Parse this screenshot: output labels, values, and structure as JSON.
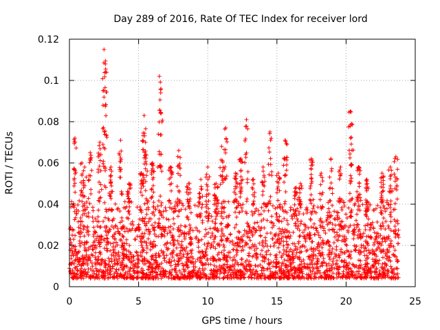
{
  "chart_data": {
    "type": "scatter",
    "title": "Day 289 of 2016, Rate Of TEC Index for receiver lord",
    "xlabel": "GPS time / hours",
    "ylabel": "ROTI / TECUs",
    "xlim": [
      0,
      25
    ],
    "ylim": [
      0,
      0.12
    ],
    "x_ticks": [
      0,
      5,
      10,
      15,
      20,
      25
    ],
    "x_tick_labels": [
      "0",
      "5",
      "10",
      "15",
      "20",
      "25"
    ],
    "y_ticks": [
      0,
      0.02,
      0.04,
      0.06,
      0.08,
      0.1,
      0.12
    ],
    "y_tick_labels": [
      "0",
      "0.02",
      "0.04",
      "0.06",
      "0.08",
      "0.1",
      "0.12"
    ],
    "grid": true,
    "marker": "+",
    "series_color": "#ff0000",
    "x_coverage": [
      0,
      23.8
    ],
    "baseline_range": [
      0.004,
      0.03
    ],
    "spikes": [
      {
        "x": 0.4,
        "y": 0.072
      },
      {
        "x": 0.9,
        "y": 0.06
      },
      {
        "x": 1.1,
        "y": 0.058
      },
      {
        "x": 1.5,
        "y": 0.065
      },
      {
        "x": 2.2,
        "y": 0.07
      },
      {
        "x": 2.5,
        "y": 0.115
      },
      {
        "x": 2.6,
        "y": 0.108
      },
      {
        "x": 3.0,
        "y": 0.058
      },
      {
        "x": 3.7,
        "y": 0.071
      },
      {
        "x": 4.3,
        "y": 0.05
      },
      {
        "x": 5.2,
        "y": 0.055
      },
      {
        "x": 5.4,
        "y": 0.083
      },
      {
        "x": 5.5,
        "y": 0.07
      },
      {
        "x": 6.0,
        "y": 0.06
      },
      {
        "x": 6.5,
        "y": 0.102
      },
      {
        "x": 6.6,
        "y": 0.094
      },
      {
        "x": 7.3,
        "y": 0.058
      },
      {
        "x": 7.9,
        "y": 0.066
      },
      {
        "x": 8.6,
        "y": 0.05
      },
      {
        "x": 9.5,
        "y": 0.052
      },
      {
        "x": 10.0,
        "y": 0.058
      },
      {
        "x": 10.6,
        "y": 0.05
      },
      {
        "x": 11.0,
        "y": 0.068
      },
      {
        "x": 11.3,
        "y": 0.077
      },
      {
        "x": 12.0,
        "y": 0.055
      },
      {
        "x": 12.4,
        "y": 0.062
      },
      {
        "x": 12.8,
        "y": 0.081
      },
      {
        "x": 13.3,
        "y": 0.052
      },
      {
        "x": 14.0,
        "y": 0.058
      },
      {
        "x": 14.5,
        "y": 0.075
      },
      {
        "x": 15.1,
        "y": 0.055
      },
      {
        "x": 15.6,
        "y": 0.071
      },
      {
        "x": 16.4,
        "y": 0.048
      },
      {
        "x": 16.7,
        "y": 0.05
      },
      {
        "x": 17.5,
        "y": 0.062
      },
      {
        "x": 18.2,
        "y": 0.055
      },
      {
        "x": 18.9,
        "y": 0.062
      },
      {
        "x": 19.6,
        "y": 0.058
      },
      {
        "x": 20.3,
        "y": 0.085
      },
      {
        "x": 20.4,
        "y": 0.079
      },
      {
        "x": 20.9,
        "y": 0.058
      },
      {
        "x": 21.5,
        "y": 0.052
      },
      {
        "x": 22.6,
        "y": 0.055
      },
      {
        "x": 23.2,
        "y": 0.058
      },
      {
        "x": 23.6,
        "y": 0.063
      }
    ]
  }
}
